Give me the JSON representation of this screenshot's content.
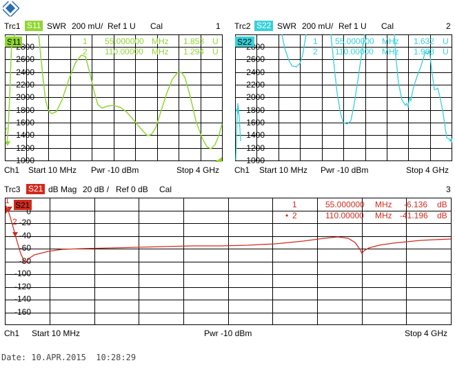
{
  "logo": {
    "text": "R&S",
    "color": "#2b6cb0"
  },
  "colors": {
    "s11": "#8fd631",
    "s22": "#35d1d9",
    "s21": "#d12a1d",
    "grid": "#000000",
    "text": "#000000"
  },
  "panel1": {
    "trace": "Trc1",
    "param": "S11",
    "format": "SWR",
    "scale": "200 mU/",
    "ref": "Ref 1 U",
    "cal": "Cal",
    "window_number": "1",
    "y_ticks": [
      "2800",
      "2600",
      "2400",
      "2200",
      "2000",
      "1800",
      "1600",
      "1400",
      "1200",
      "1000"
    ],
    "markers": [
      {
        "num": "1",
        "freq": "55.000000",
        "unit": "MHz",
        "value": "1.853",
        "vunit": "U"
      },
      {
        "num": "2",
        "freq": "110.00000",
        "unit": "MHz",
        "value": "1.294",
        "vunit": "U"
      }
    ],
    "footer": {
      "channel": "Ch1",
      "start": "Start  10 MHz",
      "power": "Pwr  -10 dBm",
      "stop": "Stop  4 GHz"
    }
  },
  "panel2": {
    "trace": "Trc2",
    "param": "S22",
    "format": "SWR",
    "scale": "200 mU/",
    "ref": "Ref 1 U",
    "cal": "Cal",
    "window_number": "2",
    "y_ticks": [
      "2800",
      "2600",
      "2400",
      "2200",
      "2000",
      "1800",
      "1600",
      "1400",
      "1200",
      "1000"
    ],
    "markers": [
      {
        "num": "1",
        "freq": "55.000000",
        "unit": "MHz",
        "value": "1.632",
        "vunit": "U"
      },
      {
        "num": "2",
        "freq": "110.00000",
        "unit": "MHz",
        "value": "1.963",
        "vunit": "U"
      }
    ],
    "footer": {
      "channel": "Ch1",
      "start": "Start  10 MHz",
      "power": "Pwr  -10 dBm",
      "stop": "Stop  4 GHz"
    }
  },
  "panel3": {
    "trace": "Trc3",
    "param": "S21",
    "format": "dB Mag",
    "scale": "20 dB /",
    "ref": "Ref 0 dB",
    "cal": "Cal",
    "window_number": "3",
    "y_ticks": [
      "0",
      "-20",
      "-40",
      "-60",
      "-80",
      "-100",
      "-120",
      "-140",
      "-160"
    ],
    "markers": [
      {
        "num": "1",
        "prefix": "",
        "freq": "55.000000",
        "unit": "MHz",
        "value": "-6.136",
        "vunit": "dB"
      },
      {
        "num": "2",
        "prefix": "•",
        "freq": "110.00000",
        "unit": "MHz",
        "value": "-41.196",
        "vunit": "dB"
      }
    ],
    "footer": {
      "channel": "Ch1",
      "start": "Start  10 MHz",
      "power": "Pwr  -10 dBm",
      "stop": "Stop  4 GHz"
    }
  },
  "footer": {
    "date": "Date: 10.APR.2015  10:28:29"
  }
}
